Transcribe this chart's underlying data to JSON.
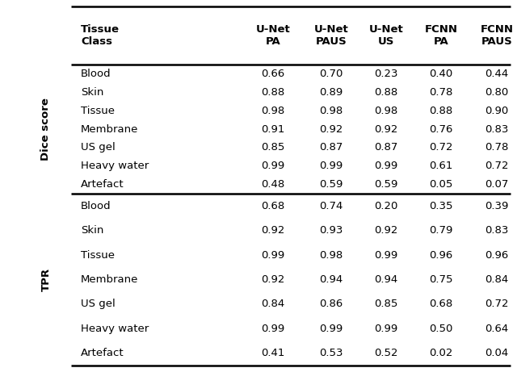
{
  "col_headers": [
    "Tissue\nClass",
    "U-Net\nPA",
    "U-Net\nPAUS",
    "U-Net\nUS",
    "FCNN\nPA",
    "FCNN\nPAUS"
  ],
  "section1_label": "Dice score",
  "section2_label": "TPR",
  "section1_rows": [
    [
      "Blood",
      "0.66",
      "0.70",
      "0.23",
      "0.40",
      "0.44"
    ],
    [
      "Skin",
      "0.88",
      "0.89",
      "0.88",
      "0.78",
      "0.80"
    ],
    [
      "Tissue",
      "0.98",
      "0.98",
      "0.98",
      "0.88",
      "0.90"
    ],
    [
      "Membrane",
      "0.91",
      "0.92",
      "0.92",
      "0.76",
      "0.83"
    ],
    [
      "US gel",
      "0.85",
      "0.87",
      "0.87",
      "0.72",
      "0.78"
    ],
    [
      "Heavy water",
      "0.99",
      "0.99",
      "0.99",
      "0.61",
      "0.72"
    ],
    [
      "Artefact",
      "0.48",
      "0.59",
      "0.59",
      "0.05",
      "0.07"
    ]
  ],
  "section2_rows": [
    [
      "Blood",
      "0.68",
      "0.74",
      "0.20",
      "0.35",
      "0.39"
    ],
    [
      "Skin",
      "0.92",
      "0.93",
      "0.92",
      "0.79",
      "0.83"
    ],
    [
      "Tissue",
      "0.99",
      "0.98",
      "0.99",
      "0.96",
      "0.96"
    ],
    [
      "Membrane",
      "0.92",
      "0.94",
      "0.94",
      "0.75",
      "0.84"
    ],
    [
      "US gel",
      "0.84",
      "0.86",
      "0.85",
      "0.68",
      "0.72"
    ],
    [
      "Heavy water",
      "0.99",
      "0.99",
      "0.99",
      "0.50",
      "0.64"
    ],
    [
      "Artefact",
      "0.41",
      "0.53",
      "0.52",
      "0.02",
      "0.04"
    ]
  ],
  "bg_color": "#ffffff",
  "text_color": "#000000",
  "header_fontsize": 9.5,
  "data_fontsize": 9.5,
  "label_fontsize": 9.5,
  "line_color": "#000000",
  "line_width": 1.4
}
